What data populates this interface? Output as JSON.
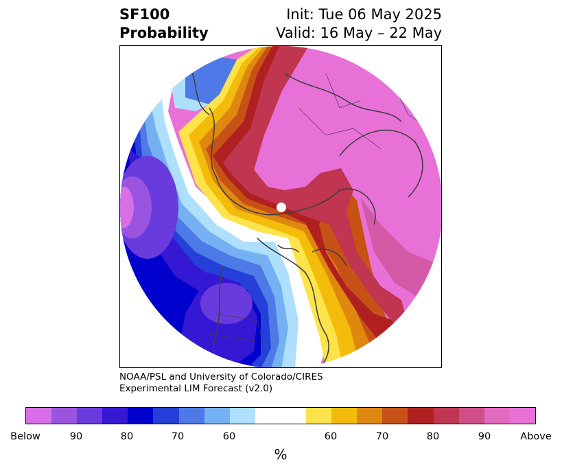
{
  "title": {
    "left_line1": "SF100",
    "left_line2": "Probability",
    "right_line1": "Init: Tue 06 May 2025",
    "right_line2": "Valid: 16 May – 22 May"
  },
  "credit": {
    "line1": "NOAA/PSL and University of Colorado/CIRES",
    "line2": "Experimental LIM Forecast (v2.0)"
  },
  "colorbar": {
    "colors": [
      "#d86fe6",
      "#9a55e0",
      "#6a3bdc",
      "#3518d4",
      "#0000cc",
      "#2540d8",
      "#4d7ae6",
      "#74b0f2",
      "#aee0fd",
      "#ffffff",
      "#ffffff",
      "#ffe34a",
      "#f3bc0a",
      "#df8810",
      "#c75216",
      "#b02020",
      "#c03550",
      "#d04f88",
      "#e26ac0",
      "#e871d8"
    ],
    "tick_labels": [
      "Below",
      "90",
      "80",
      "70",
      "60",
      "60",
      "70",
      "80",
      "90",
      "Above"
    ],
    "units": "%"
  },
  "map": {
    "colors": {
      "above_max": "#e871d8",
      "above_90": "#d45aa8",
      "above_80": "#c03550",
      "above_75": "#b02020",
      "above_70": "#c75216",
      "above_65": "#df8810",
      "above_60": "#f3bc0a",
      "above_55": "#ffe34a",
      "near_normal": "#ffffff",
      "below_55": "#aee0fd",
      "below_60": "#74b0f2",
      "below_65": "#4d7ae6",
      "below_70": "#2540d8",
      "below_75": "#0000cc",
      "below_80": "#3518d4",
      "below_85": "#6a3bdc",
      "below_90": "#9a55e0",
      "below_max": "#d86fe6",
      "coastline": "#404040",
      "pole_marker": "#ffffff"
    }
  }
}
